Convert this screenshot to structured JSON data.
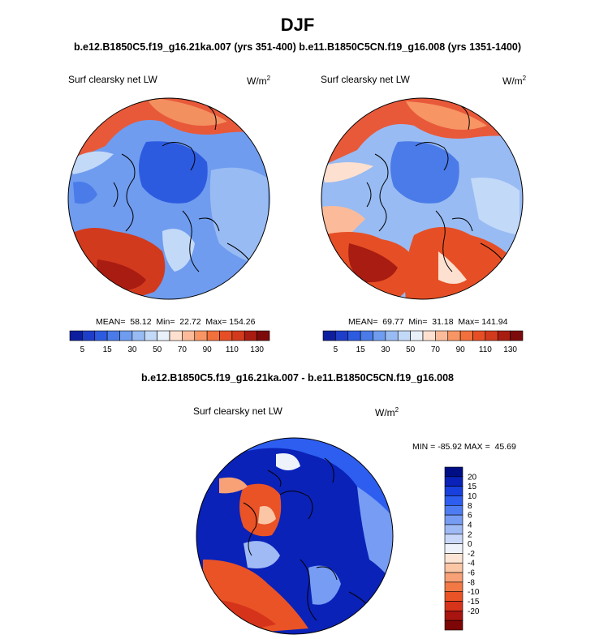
{
  "figure": {
    "title": "DJF",
    "subtitle": "b.e12.B1850C5.f19_g16.21ka.007 (yrs 351-400) b.e11.B1850C5CN.f19_g16.008 (yrs 1351-1400)"
  },
  "panels": [
    {
      "label": "Surf clearsky net LW",
      "unit_base": "W/m",
      "unit_exp": "2",
      "stats": "MEAN=  58.12  Min=  22.72  Max= 154.26"
    },
    {
      "label": "Surf clearsky net LW",
      "unit_base": "W/m",
      "unit_exp": "2",
      "stats": "MEAN=  69.77  Min=  31.18  Max= 141.94"
    }
  ],
  "abs_colorbar": {
    "colors": [
      "#0d1f9e",
      "#1e3ec9",
      "#2d5be0",
      "#4a7be8",
      "#6f9cef",
      "#98bbf3",
      "#c3d9f8",
      "#e8f0fa",
      "#fde0cf",
      "#fbbb9a",
      "#f79564",
      "#f1703c",
      "#e64f25",
      "#d23a1d",
      "#a81c12",
      "#7d0b0b"
    ],
    "tick_labels": [
      "5",
      "15",
      "30",
      "50",
      "70",
      "90",
      "110",
      "130"
    ]
  },
  "diff": {
    "title": "b.e12.B1850C5.f19_g16.21ka.007 - b.e11.B1850C5CN.f19_g16.008",
    "label": "Surf clearsky net LW",
    "unit_base": "W/m",
    "unit_exp": "2",
    "minmax": "MIN = -85.92 MAX =  45.69"
  },
  "diff_colorbar": {
    "colors": [
      "#000e85",
      "#0a22b8",
      "#1840dc",
      "#2d5ef0",
      "#4e7cf2",
      "#769cf4",
      "#9fbaf5",
      "#c9d8f8",
      "#eef2fb",
      "#fde5d5",
      "#fbc6a6",
      "#f8a076",
      "#f27845",
      "#e95326",
      "#d6331b",
      "#a81410",
      "#7d0606"
    ],
    "tick_labels": [
      "20",
      "15",
      "10",
      "8",
      "6",
      "4",
      "2",
      "0",
      "-2",
      "-4",
      "-6",
      "-8",
      "-10",
      "-15",
      "-20"
    ]
  }
}
